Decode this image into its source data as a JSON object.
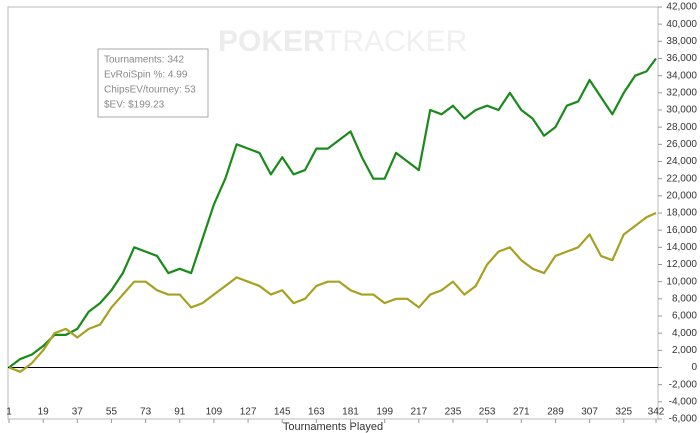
{
  "chart_data": {
    "type": "line",
    "watermark": [
      "POKER",
      "TRACKER"
    ],
    "tooltip": [
      "Tournaments: 342",
      "EvRoiSpin %: 4.99",
      "ChipsEV/tourney: 53",
      "$EV: $199.23"
    ],
    "x_label": "Tournaments Played",
    "x": [
      1,
      7,
      13,
      19,
      25,
      31,
      37,
      43,
      49,
      55,
      61,
      67,
      73,
      79,
      85,
      91,
      97,
      103,
      109,
      115,
      121,
      127,
      133,
      139,
      145,
      151,
      157,
      163,
      169,
      175,
      181,
      187,
      193,
      199,
      205,
      211,
      217,
      223,
      229,
      235,
      241,
      247,
      253,
      259,
      265,
      271,
      277,
      283,
      289,
      295,
      301,
      307,
      313,
      319,
      325,
      331,
      337,
      342
    ],
    "series": [
      {
        "color": "#1a8a1a",
        "values": [
          0,
          1000,
          1500,
          2500,
          3800,
          3800,
          4500,
          6500,
          7500,
          9000,
          11000,
          14000,
          13500,
          13000,
          11000,
          11500,
          11000,
          15000,
          19000,
          22000,
          26000,
          25500,
          25000,
          22500,
          24500,
          22500,
          23000,
          25500,
          25500,
          26500,
          27500,
          24500,
          22000,
          22000,
          25000,
          24000,
          23000,
          30000,
          29500,
          30500,
          29000,
          30000,
          30500,
          30000,
          32000,
          30000,
          29000,
          27000,
          28000,
          30500,
          31000,
          33500,
          31500,
          29500,
          32000,
          34000,
          34500,
          36000
        ]
      },
      {
        "color": "#a8a020",
        "values": [
          0,
          -500,
          500,
          2000,
          4000,
          4500,
          3500,
          4500,
          5000,
          7000,
          8500,
          10000,
          10000,
          9000,
          8500,
          8500,
          7000,
          7500,
          8500,
          9500,
          10500,
          10000,
          9500,
          8500,
          9000,
          7500,
          8000,
          9500,
          10000,
          10000,
          9000,
          8500,
          8500,
          7500,
          8000,
          8000,
          7000,
          8500,
          9000,
          10000,
          8500,
          9500,
          12000,
          13500,
          14000,
          12500,
          11500,
          11000,
          13000,
          13500,
          14000,
          15500,
          13000,
          12500,
          15500,
          16500,
          17500,
          18000
        ]
      }
    ],
    "xlim": [
      1,
      342
    ],
    "xticks": [
      1,
      19,
      37,
      55,
      73,
      91,
      109,
      127,
      145,
      163,
      181,
      199,
      217,
      235,
      253,
      271,
      289,
      307,
      325,
      342
    ],
    "ylim": [
      -6000,
      42000
    ],
    "yticks": [
      {
        "value": -6000,
        "label": "-6,000"
      },
      {
        "value": -4000,
        "label": "-4,000"
      },
      {
        "value": -2000,
        "label": "-2,000"
      },
      0,
      {
        "value": 2000,
        "label": "2,000"
      },
      {
        "value": 4000,
        "label": "4,000"
      },
      {
        "value": 6000,
        "label": "6,000"
      },
      {
        "value": 8000,
        "label": "8,000"
      },
      {
        "value": 10000,
        "label": "10,000"
      },
      {
        "value": 12000,
        "label": "12,000"
      },
      {
        "value": 14000,
        "label": "14,000"
      },
      {
        "value": 16000,
        "label": "16,000"
      },
      {
        "value": 18000,
        "label": "18,000"
      },
      {
        "value": 20000,
        "label": "20,000"
      },
      {
        "value": 22000,
        "label": "22,000"
      },
      {
        "value": 24000,
        "label": "24,000"
      },
      {
        "value": 26000,
        "label": "26,000"
      },
      {
        "value": 28000,
        "label": "28,000"
      },
      {
        "value": 30000,
        "label": "30,000"
      },
      {
        "value": 32000,
        "label": "32,000"
      },
      {
        "value": 34000,
        "label": "34,000"
      },
      {
        "value": 36000,
        "label": "36,000"
      },
      {
        "value": 38000,
        "label": "38,000"
      },
      {
        "value": 40000,
        "label": "40,000"
      },
      {
        "value": 42000,
        "label": "42,000"
      }
    ]
  }
}
